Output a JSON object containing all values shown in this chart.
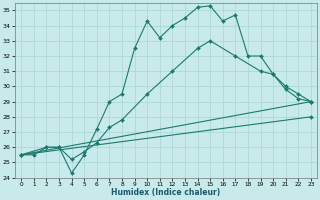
{
  "xlabel": "Humidex (Indice chaleur)",
  "xlim": [
    -0.5,
    23.5
  ],
  "ylim": [
    24,
    35.5
  ],
  "xticks": [
    0,
    1,
    2,
    3,
    4,
    5,
    6,
    7,
    8,
    9,
    10,
    11,
    12,
    13,
    14,
    15,
    16,
    17,
    18,
    19,
    20,
    21,
    22,
    23
  ],
  "yticks": [
    24,
    25,
    26,
    27,
    28,
    29,
    30,
    31,
    32,
    33,
    34,
    35
  ],
  "bg_color": "#c8eaea",
  "line_color": "#1a7a6e",
  "grid_color": "#aad4d4",
  "line1_x": [
    0,
    1,
    2,
    3,
    4,
    5,
    6,
    7,
    8,
    9,
    10,
    11,
    12,
    13,
    14,
    15,
    16,
    17,
    18,
    19,
    20,
    21,
    22,
    23
  ],
  "line1_y": [
    25.5,
    25.5,
    26.0,
    26.0,
    24.3,
    25.5,
    27.2,
    29.0,
    29.5,
    32.5,
    34.3,
    33.2,
    34.0,
    34.5,
    35.2,
    35.3,
    34.3,
    34.7,
    32.0,
    32.0,
    30.8,
    29.8,
    29.2,
    29.0
  ],
  "line2_x": [
    0,
    2,
    3,
    4,
    5,
    6,
    7,
    8,
    10,
    12,
    14,
    15,
    17,
    19,
    20,
    21,
    22,
    23
  ],
  "line2_y": [
    25.5,
    26.0,
    26.0,
    25.2,
    25.7,
    26.3,
    27.3,
    27.8,
    29.5,
    31.0,
    32.5,
    33.0,
    32.0,
    31.0,
    30.8,
    30.0,
    29.5,
    29.0
  ],
  "line3_x": [
    0,
    23
  ],
  "line3_y": [
    25.5,
    29.0
  ],
  "line4_x": [
    0,
    23
  ],
  "line4_y": [
    25.5,
    28.0
  ]
}
